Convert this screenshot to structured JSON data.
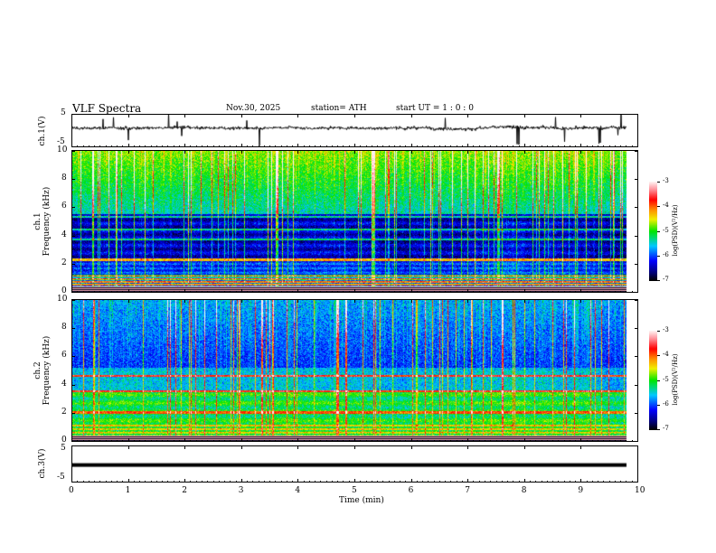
{
  "header": {
    "title": "VLF Spectra",
    "date": "Nov.30, 2025",
    "station": "station= ATH",
    "start_ut": "start UT =   1 : 0 : 0"
  },
  "chart_data": [
    {
      "type": "line",
      "name": "ch1-waveform",
      "ylabel": "ch.1(V)",
      "ylim": [
        -5,
        5
      ],
      "yticks": [
        "5",
        "-5"
      ],
      "xlim": [
        0,
        10
      ],
      "data_end_min": 9.8,
      "baseline_v": 0.3
    },
    {
      "type": "heatmap",
      "name": "ch1-spectrogram",
      "ylabel_channel": "ch.1",
      "ylabel": "Frequency (kHz)",
      "ylim": [
        0,
        10
      ],
      "yticks": [
        "0",
        "2",
        "4",
        "6",
        "8",
        "10"
      ],
      "xlim": [
        0,
        10
      ],
      "colorbar": {
        "label": "log(PSD)(V²/Hz)",
        "range": [
          -7,
          -3
        ],
        "ticks": [
          "-3",
          "-4",
          "-5",
          "-6",
          "-7"
        ]
      }
    },
    {
      "type": "heatmap",
      "name": "ch2-spectrogram",
      "ylabel_channel": "ch.2",
      "ylabel": "Frequency (kHz)",
      "ylim": [
        0,
        10
      ],
      "yticks": [
        "0",
        "2",
        "4",
        "6",
        "8",
        "10"
      ],
      "xlim": [
        0,
        10
      ],
      "colorbar": {
        "label": "log(PSD)(V²/Hz)",
        "range": [
          -7,
          -3
        ],
        "ticks": [
          "-3",
          "-4",
          "-5",
          "-6",
          "-7"
        ]
      }
    },
    {
      "type": "line",
      "name": "ch3-waveform",
      "ylabel": "ch.3(V)",
      "ylim": [
        -5,
        5
      ],
      "yticks": [
        "5",
        "-5"
      ],
      "xlim": [
        0,
        10
      ],
      "data_end_min": 9.8,
      "baseline_v": -0.8
    }
  ],
  "xaxis": {
    "label": "Time (min)",
    "ticks": [
      "0",
      "1",
      "2",
      "3",
      "4",
      "5",
      "6",
      "7",
      "8",
      "9",
      "10"
    ]
  }
}
